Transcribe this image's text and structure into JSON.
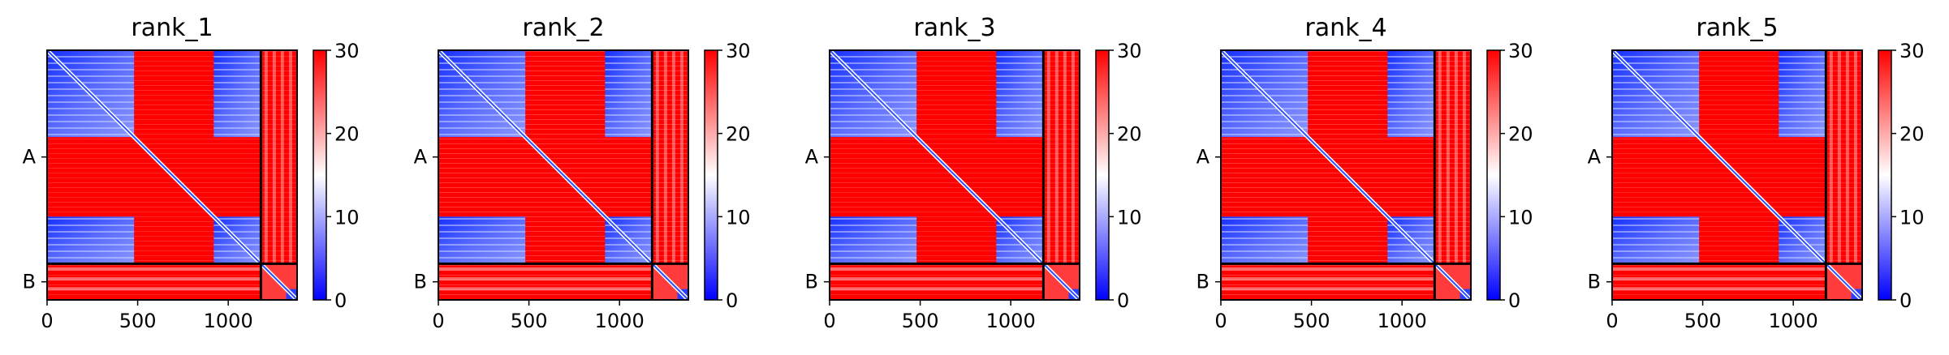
{
  "chart_data": {
    "type": "heatmap",
    "colormap": [
      "#0000ff",
      "#ffffff",
      "#ff0000"
    ],
    "color_range": [
      0,
      30
    ],
    "colorbar_ticks": [
      "0",
      "10",
      "20",
      "30"
    ],
    "x_ticks": [
      {
        "value": 0,
        "label": "0"
      },
      {
        "value": 500,
        "label": "500"
      },
      {
        "value": 1000,
        "label": "1000"
      }
    ],
    "x_range": [
      0,
      1380
    ],
    "chains": [
      {
        "label": "A",
        "start": 0,
        "end": 1180
      },
      {
        "label": "B",
        "start": 1180,
        "end": 1380
      }
    ],
    "domains": [
      {
        "start": 0,
        "end": 480
      },
      {
        "start": 920,
        "end": 1180
      },
      {
        "start": 1180,
        "end": 1380
      }
    ],
    "panels": [
      {
        "title": "rank_1"
      },
      {
        "title": "rank_2"
      },
      {
        "title": "rank_3"
      },
      {
        "title": "rank_4"
      },
      {
        "title": "rank_5"
      }
    ]
  }
}
